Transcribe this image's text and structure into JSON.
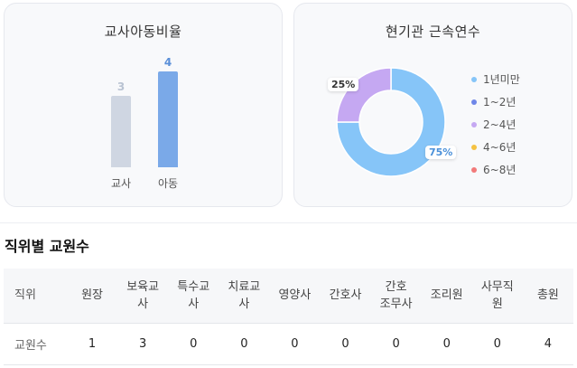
{
  "teacher_child_ratio": {
    "title": "교사아동비율",
    "categories": [
      "교사",
      "아동"
    ],
    "values": [
      3,
      4
    ],
    "colors": [
      "#cfd6e2",
      "#7aa9e8"
    ],
    "label_colors": [
      "#b9c3d2",
      "#5a8fd8"
    ]
  },
  "tenure": {
    "title": "현기관 근속연수",
    "legend": [
      {
        "label": "1년미만",
        "color": "#86c5f8"
      },
      {
        "label": "1~2년",
        "color": "#6f87e8"
      },
      {
        "label": "2~4년",
        "color": "#c5a8f2"
      },
      {
        "label": "4~6년",
        "color": "#f5c242"
      },
      {
        "label": "6~8년",
        "color": "#f27a7a"
      }
    ],
    "slices": [
      {
        "label": "1년미만",
        "value": 75,
        "color": "#86c5f8",
        "text": "75%"
      },
      {
        "label": "2~4년",
        "value": 25,
        "color": "#c5a8f2",
        "text": "25%"
      }
    ]
  },
  "staff_section": {
    "title": "직위별 교원수",
    "headers": [
      "직위",
      "원장",
      "보육교\n사",
      "특수교\n사",
      "치료교\n사",
      "영양사",
      "간호사",
      "간호\n조무사",
      "조리원",
      "사무직\n원",
      "총원"
    ],
    "row_label": "교원수",
    "values": [
      "1",
      "3",
      "0",
      "0",
      "0",
      "0",
      "0",
      "0",
      "0",
      "4"
    ]
  }
}
